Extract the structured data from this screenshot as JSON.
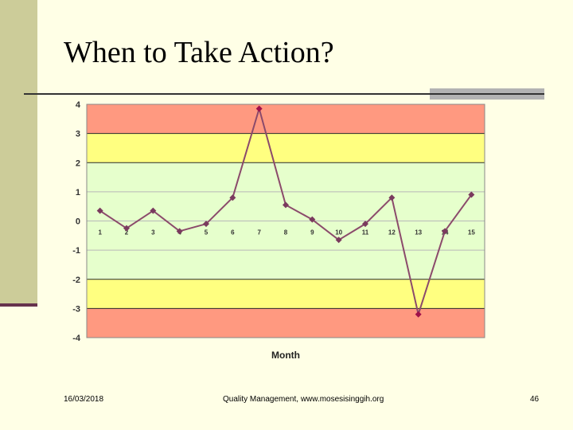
{
  "slide": {
    "title": "When to Take Action?",
    "footer_date": "16/03/2018",
    "footer_center": "Quality Management, www.mosesisinggih.org",
    "page_number": "46"
  },
  "colors": {
    "red_zone": "#ff9980",
    "yellow_zone": "#ffff80",
    "green_zone": "#e6ffcc",
    "line": "#8b4a6b",
    "marker": "#7a3a5e",
    "highlight_marker": "#a0104a"
  },
  "chart_data": {
    "type": "line",
    "title": "",
    "xlabel": "Month",
    "ylabel": "",
    "ylim": [
      -4,
      4
    ],
    "yticks": [
      4,
      3,
      2,
      1,
      0,
      -1,
      -2,
      -3,
      -4
    ],
    "categories": [
      "1",
      "2",
      "3",
      "4",
      "5",
      "6",
      "7",
      "8",
      "9",
      "10",
      "11",
      "12",
      "13",
      "14",
      "15"
    ],
    "values": [
      0.35,
      -0.25,
      0.35,
      -0.35,
      -0.1,
      0.8,
      3.85,
      0.55,
      0.05,
      -0.65,
      -0.1,
      0.8,
      -3.2,
      -0.35,
      0.9
    ],
    "zones": [
      {
        "from": 3,
        "to": 4,
        "color": "red"
      },
      {
        "from": 2,
        "to": 3,
        "color": "yellow"
      },
      {
        "from": -2,
        "to": 2,
        "color": "green"
      },
      {
        "from": -3,
        "to": -2,
        "color": "yellow"
      },
      {
        "from": -4,
        "to": -3,
        "color": "red"
      }
    ],
    "grid": true
  }
}
